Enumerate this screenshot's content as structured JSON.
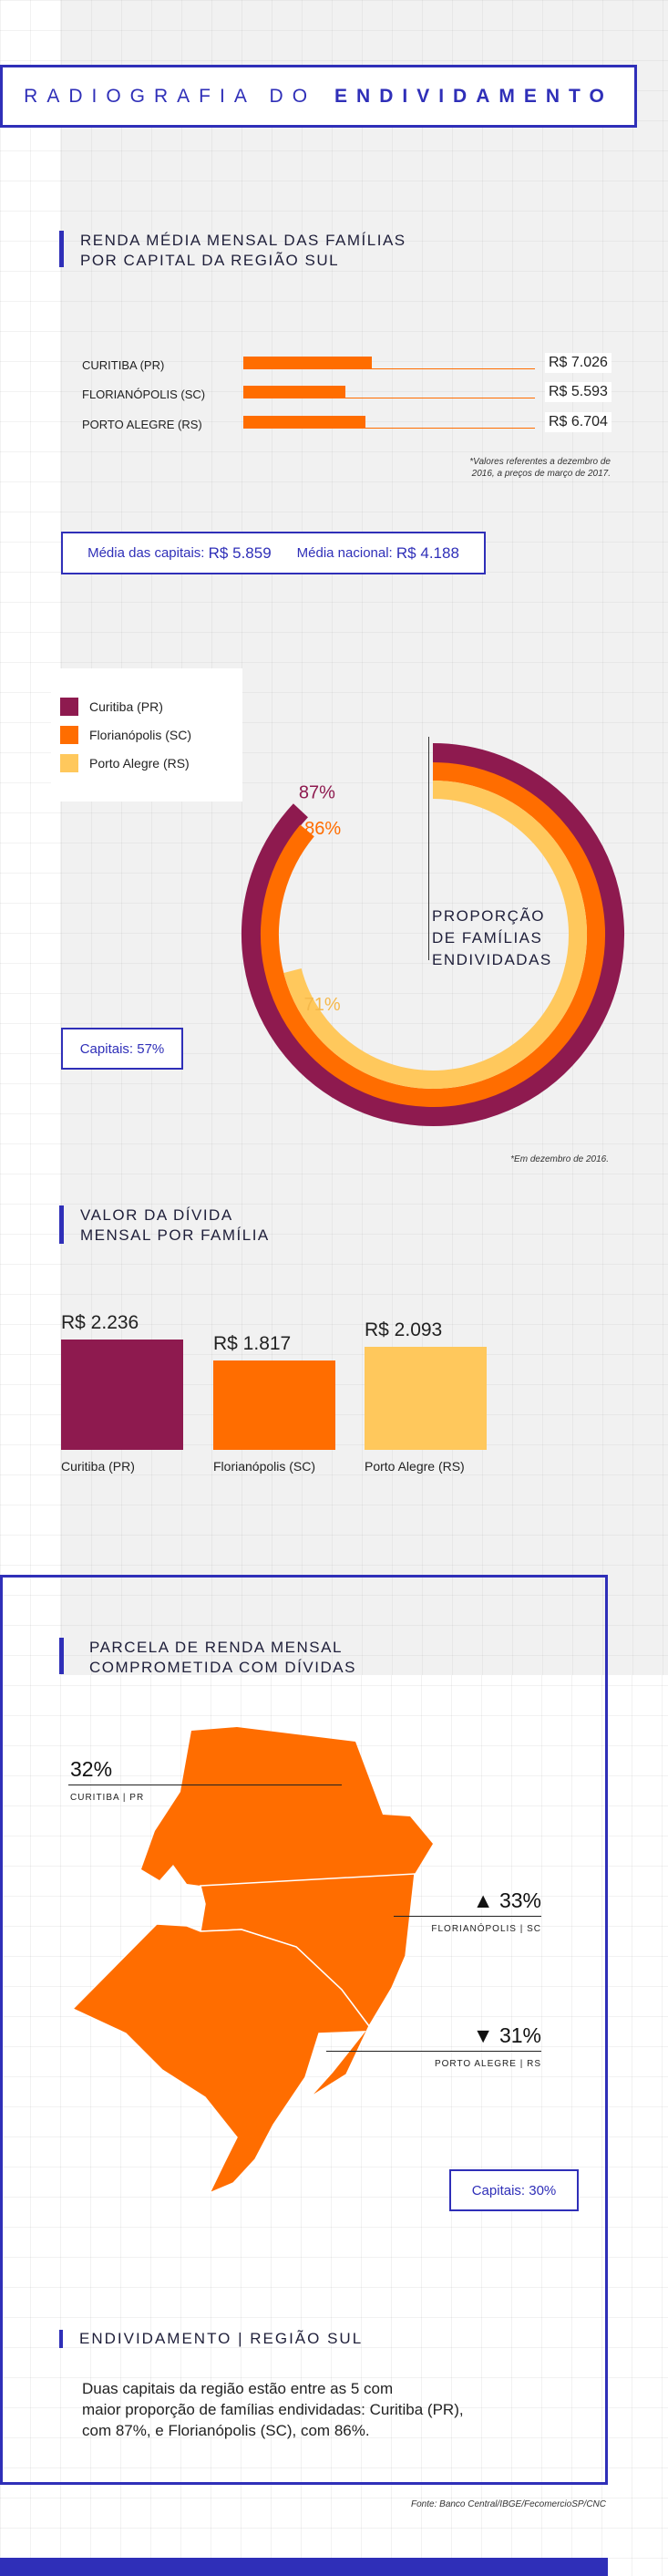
{
  "title": {
    "light": "RADIOGRAFIA DO",
    "bold": "ENDIVIDAMENTO"
  },
  "income_section": {
    "heading": "RENDA MÉDIA MENSAL DAS FAMÍLIAS\nPOR CAPITAL DA REGIÃO SUL",
    "note": "*Valores referentes a dezembro de\n2016, a preços de março de 2017.",
    "averages": {
      "capitals_label": "Média das capitais:",
      "capitals_value": "R$ 5.859",
      "national_label": "Média nacional:",
      "national_value": "R$ 4.188"
    }
  },
  "share_section": {
    "ring_label": "PROPORÇÃO\nDE FAMÍLIAS\nENDIVIDADAS",
    "capitals_label": "Capitais:",
    "capitals_value": "57%",
    "note": "*Em dezembro de 2016."
  },
  "debt_section": {
    "heading": "VALOR DA DÍVIDA\nMENSAL POR FAMÍLIA"
  },
  "map_section": {
    "heading": "PARCELA DE RENDA MENSAL\nCOMPROMETIDA COM DÍVIDAS",
    "capitals_label": "Capitais:",
    "capitals_value": "30%",
    "markers": [
      {
        "value": "32%",
        "caption": "CURITIBA | PR",
        "arrow": ""
      },
      {
        "value": "33%",
        "caption": "FLORIANÓPOLIS | SC",
        "arrow": "▲"
      },
      {
        "value": "31%",
        "caption": "PORTO ALEGRE | RS",
        "arrow": "▼"
      }
    ]
  },
  "footer": {
    "heading": "ENDIVIDAMENTO | REGIÃO SUL",
    "text": "Duas capitais da região estão entre as 5 com\nmaior proporção de famílias endividadas: Curitiba (PR),\n com 87%, e Florianópolis (SC), com 86%.",
    "source": "Fonte: Banco Central/IBGE/FecomercioSP/CNC"
  },
  "colors": {
    "curitiba": "#8e1a4f",
    "florianopolis": "#ff6d00",
    "porto_alegre": "#ffc85c",
    "accent": "#2f2fb8"
  },
  "chart_data": [
    {
      "type": "bar",
      "title": "RENDA MÉDIA MENSAL DAS FAMÍLIAS POR CAPITAL DA REGIÃO SUL",
      "categories": [
        "CURITIBA (PR)",
        "FLORIANÓPOLIS (SC)",
        "PORTO ALEGRE (RS)"
      ],
      "values": [
        7026,
        5593,
        6704
      ],
      "value_labels": [
        "R$ 7.026",
        "R$ 5.593",
        "R$ 6.704"
      ],
      "orientation": "horizontal"
    },
    {
      "type": "pie",
      "title": "PROPORÇÃO DE FAMÍLIAS ENDIVIDADAS",
      "categories": [
        "Curitiba (PR)",
        "Florianópolis (SC)",
        "Porto Alegre (RS)"
      ],
      "values": [
        87,
        86,
        71
      ],
      "value_labels": [
        "87%",
        "86%",
        "71%"
      ],
      "unit": "%"
    },
    {
      "type": "bar",
      "title": "VALOR DA DÍVIDA MENSAL POR FAMÍLIA",
      "categories": [
        "Curitiba (PR)",
        "Florianópolis (SC)",
        "Porto Alegre (RS)"
      ],
      "values": [
        2236,
        1817,
        2093
      ],
      "value_labels": [
        "R$ 2.236",
        "R$ 1.817",
        "R$ 2.093"
      ]
    },
    {
      "type": "bar",
      "title": "PARCELA DE RENDA MENSAL COMPROMETIDA COM DÍVIDAS",
      "categories": [
        "CURITIBA | PR",
        "FLORIANÓPOLIS | SC",
        "PORTO ALEGRE | RS"
      ],
      "values": [
        32,
        33,
        31
      ],
      "value_labels": [
        "32%",
        "33%",
        "31%"
      ],
      "unit": "%"
    }
  ]
}
